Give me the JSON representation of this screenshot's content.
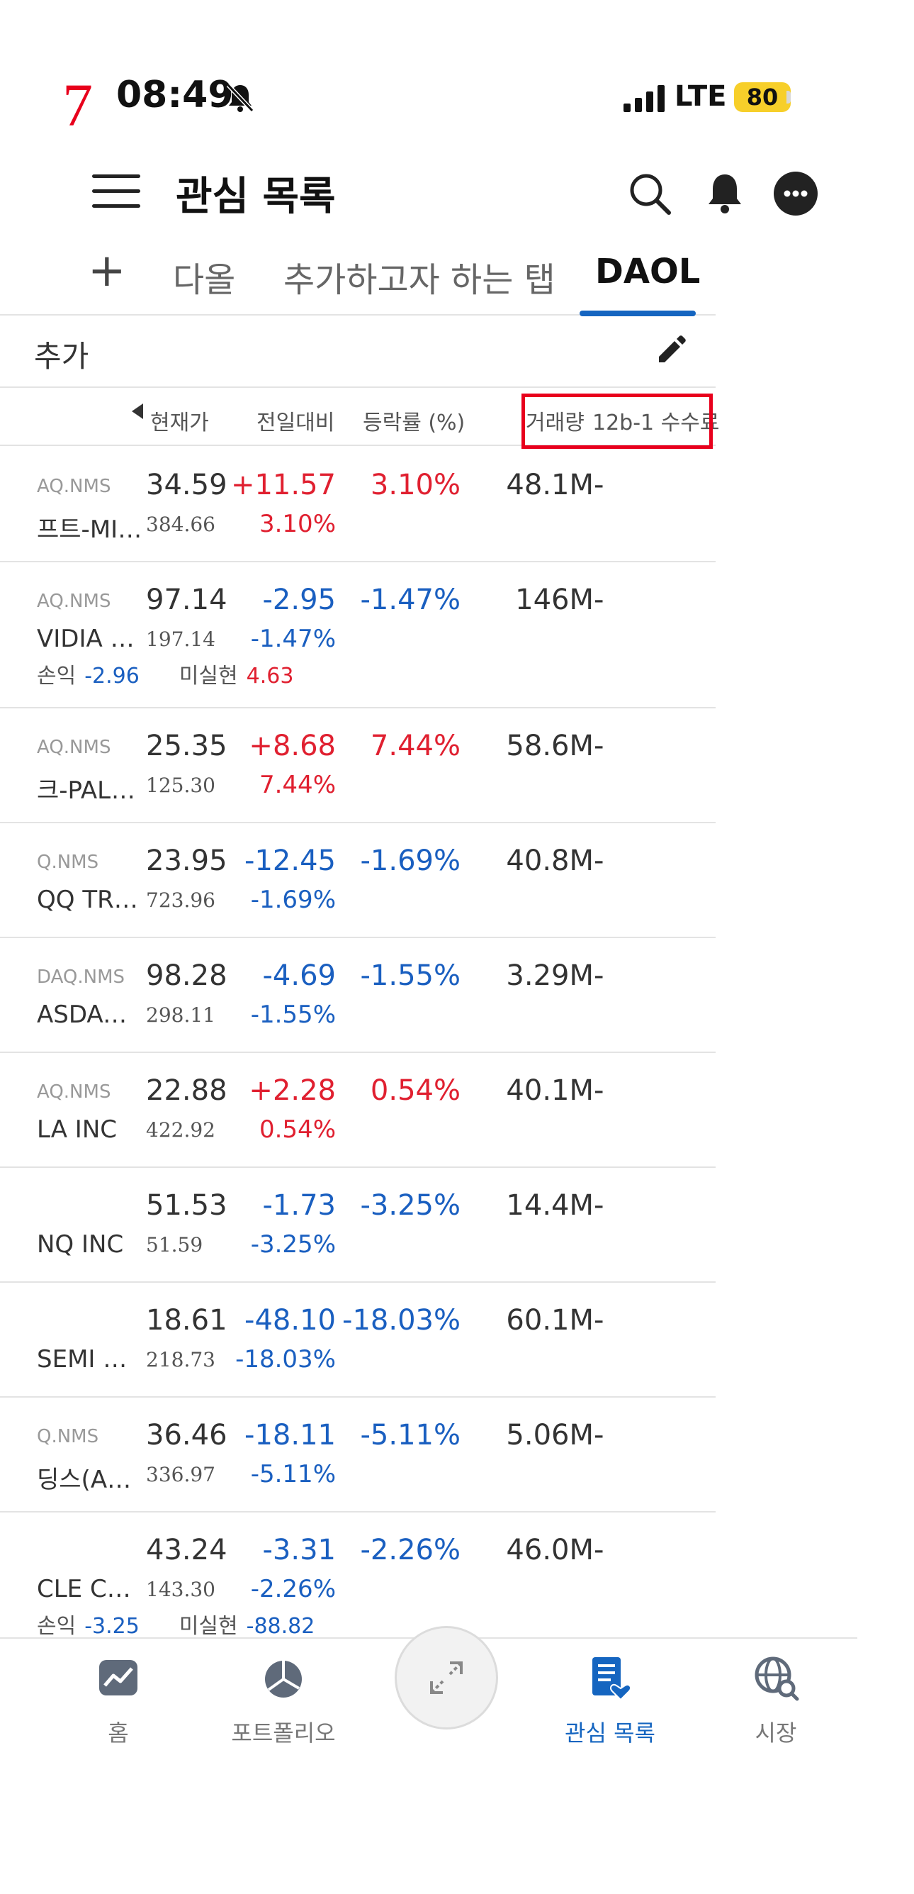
{
  "status": {
    "annotation_number": "7",
    "time": "08:49",
    "network": "LTE",
    "battery": "80"
  },
  "header": {
    "title": "관심 목록"
  },
  "tabs": [
    {
      "label": "+"
    },
    {
      "label": "다올"
    },
    {
      "label": "추가하고자 하는 탭"
    },
    {
      "label": "DAOL",
      "active": true
    }
  ],
  "add_row": {
    "label": "추가"
  },
  "columns": {
    "price": "현재가",
    "change": "전일대비",
    "rate": "등락률 (%)",
    "volume": "거래량",
    "fee_12b1": "12b-1 수수료"
  },
  "rows": [
    {
      "exch": "AQ.NMS",
      "name": "프트-MI…",
      "price": "34.59",
      "prev": "384.66",
      "chg": "+11.57",
      "chgpct": "3.10%",
      "rate": "3.10%",
      "vol": "48.1M",
      "fee": "-",
      "dir": "up"
    },
    {
      "exch": "AQ.NMS",
      "name": "VIDIA C…",
      "price": "97.14",
      "prev": "197.14",
      "chg": "-2.95",
      "chgpct": "-1.47%",
      "rate": "-1.47%",
      "vol": "146M",
      "fee": "-",
      "dir": "down",
      "pl": {
        "label1": "손익",
        "val1": "-2.96",
        "dir1": "down",
        "label2": "미실현",
        "val2": "4.63",
        "dir2": "up"
      }
    },
    {
      "exch": "AQ.NMS",
      "name": "크-PALA…",
      "price": "25.35",
      "prev": "125.30",
      "chg": "+8.68",
      "chgpct": "7.44%",
      "rate": "7.44%",
      "vol": "58.6M",
      "fee": "-",
      "dir": "up"
    },
    {
      "exch": "Q.NMS",
      "name": "QQ TR…",
      "price": "23.95",
      "prev": "723.96",
      "chg": "-12.45",
      "chgpct": "-1.69%",
      "rate": "-1.69%",
      "vol": "40.8M",
      "fee": "-",
      "dir": "down"
    },
    {
      "exch": "DAQ.NMS",
      "name": "ASDAQ…",
      "price": "98.28",
      "prev": "298.11",
      "chg": "-4.69",
      "chgpct": "-1.55%",
      "rate": "-1.55%",
      "vol": "3.29M",
      "fee": "-",
      "dir": "down"
    },
    {
      "exch": "AQ.NMS",
      "name": "LA INC",
      "price": "22.88",
      "prev": "422.92",
      "chg": "+2.28",
      "chgpct": "0.54%",
      "rate": "0.54%",
      "vol": "40.1M",
      "fee": "-",
      "dir": "up"
    },
    {
      "exch": "",
      "name": "NQ INC",
      "price": "51.53",
      "prev": "51.59",
      "chg": "-1.73",
      "chgpct": "-3.25%",
      "rate": "-3.25%",
      "vol": "14.4M",
      "fee": "-",
      "dir": "down"
    },
    {
      "exch": "",
      "name": "SEMI B…",
      "price": "18.61",
      "prev": "218.73",
      "chg": "-48.10",
      "chgpct": "-18.03%",
      "rate": "-18.03%",
      "vol": "60.1M",
      "fee": "-",
      "dir": "down"
    },
    {
      "exch": "Q.NMS",
      "name": "딩스(AD…",
      "price": "36.46",
      "prev": "336.97",
      "chg": "-18.11",
      "chgpct": "-5.11%",
      "rate": "-5.11%",
      "vol": "5.06M",
      "fee": "-",
      "dir": "down"
    },
    {
      "exch": "",
      "name": "CLE CO…",
      "price": "43.24",
      "prev": "143.30",
      "chg": "-3.31",
      "chgpct": "-2.26%",
      "rate": "-2.26%",
      "vol": "46.0M",
      "fee": "-",
      "dir": "down",
      "pl": {
        "label1": "손익",
        "val1": "-3.25",
        "dir1": "down",
        "label2": "미실현",
        "val2": "-88.82",
        "dir2": "down"
      }
    }
  ],
  "bottom_nav": [
    {
      "label": "홈",
      "icon": "chart-home-icon"
    },
    {
      "label": "포트폴리오",
      "icon": "pie-chart-icon"
    },
    {
      "label": "관심 목록",
      "icon": "watchlist-icon",
      "active": true
    },
    {
      "label": "시장",
      "icon": "globe-search-icon"
    }
  ],
  "colors": {
    "up": "#e02030",
    "down": "#1a5fc0",
    "accent": "#1565c0",
    "highlight": "#e8001c"
  }
}
